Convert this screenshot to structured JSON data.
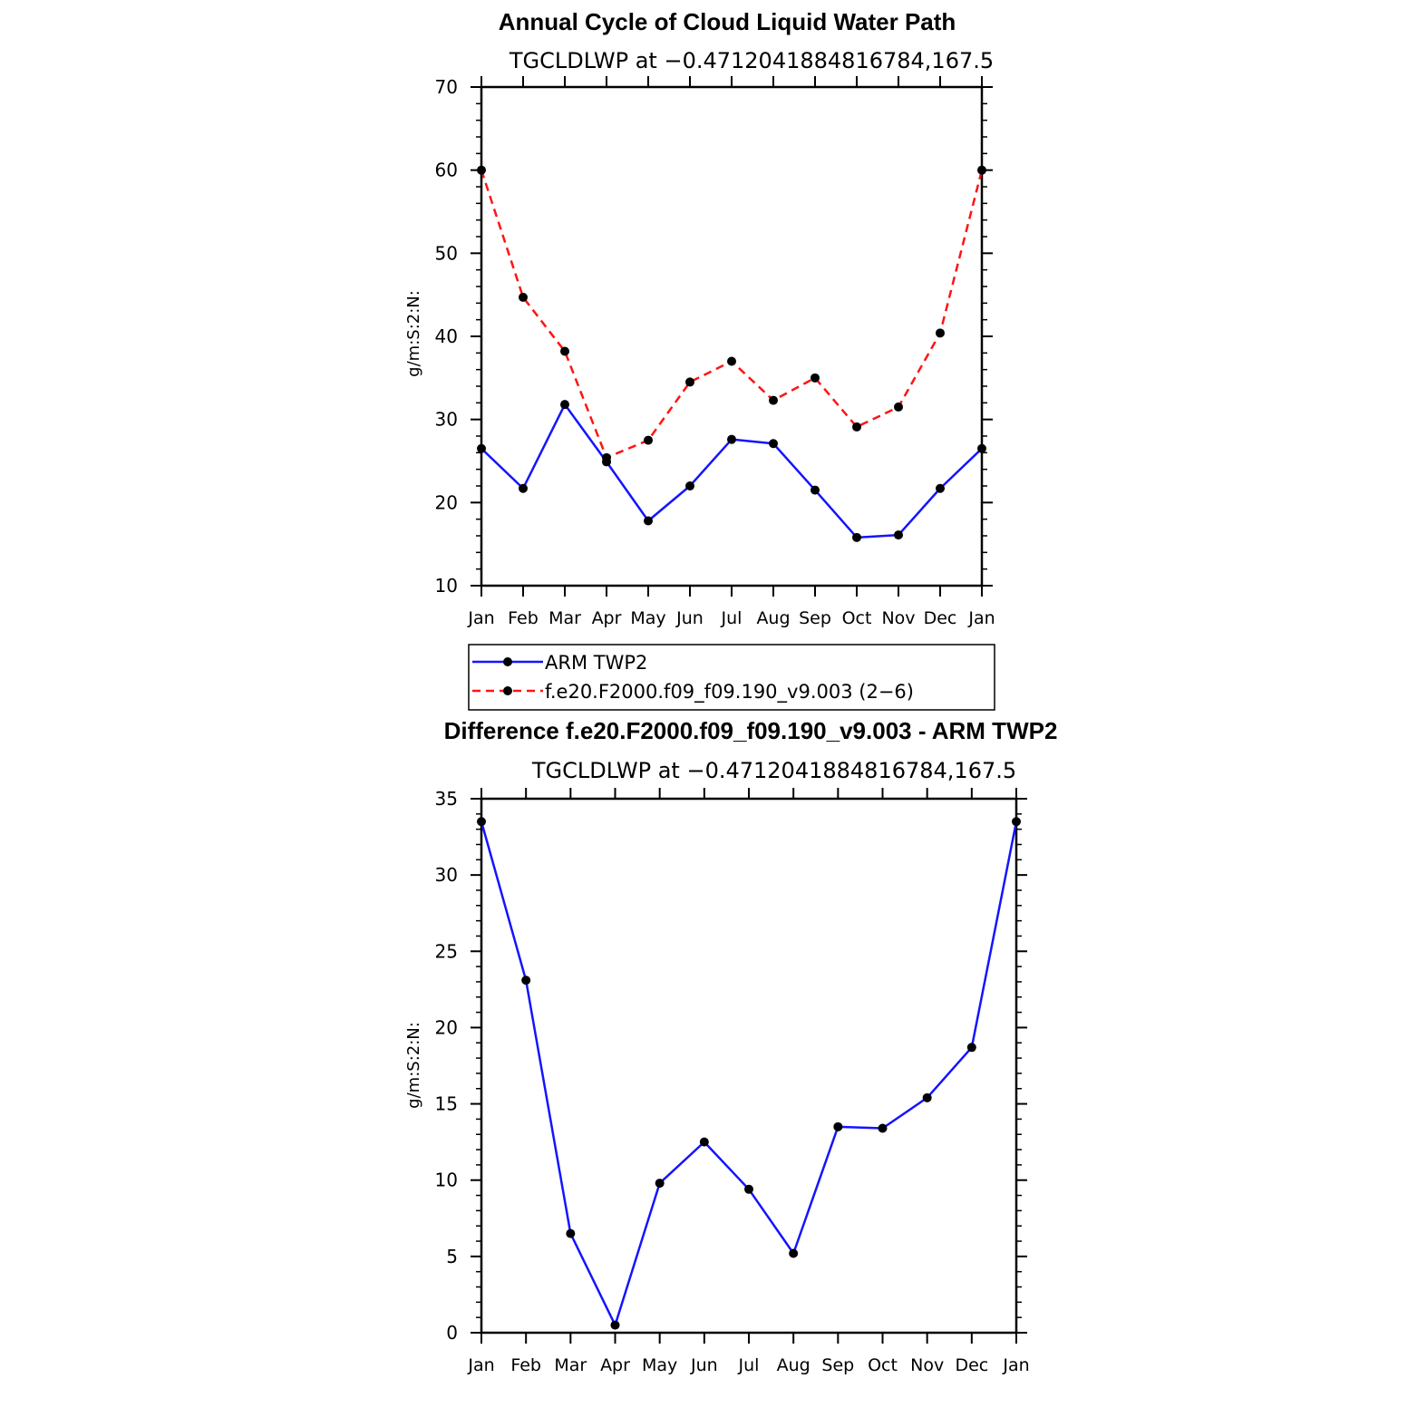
{
  "chart_data": [
    {
      "type": "line",
      "title": "Annual Cycle of Cloud Liquid Water Path",
      "subtitle": "TGCLDLWP at −0.4712041884816784,167.5",
      "xlabel": "",
      "ylabel": "g/m:S:2:N:",
      "categories": [
        "Jan",
        "Feb",
        "Mar",
        "Apr",
        "May",
        "Jun",
        "Jul",
        "Aug",
        "Sep",
        "Oct",
        "Nov",
        "Dec",
        "Jan"
      ],
      "ylim": [
        10,
        70
      ],
      "yticks": [
        10,
        20,
        30,
        40,
        50,
        60,
        70
      ],
      "grid": false,
      "legend_position": "below",
      "series": [
        {
          "name": "ARM TWP2",
          "color": "#1414ff",
          "dash": "solid",
          "values": [
            26.5,
            21.7,
            31.8,
            24.9,
            17.8,
            22.0,
            27.6,
            27.1,
            21.5,
            15.8,
            16.1,
            21.7,
            26.5
          ]
        },
        {
          "name": "f.e20.F2000.f09_f09.190_v9.003 (2−6)",
          "color": "#ff1414",
          "dash": "dashed",
          "values": [
            60.0,
            44.7,
            38.2,
            25.4,
            27.5,
            34.5,
            37.0,
            32.3,
            35.0,
            29.1,
            31.5,
            40.4,
            60.0
          ]
        }
      ]
    },
    {
      "type": "line",
      "title": "Difference f.e20.F2000.f09_f09.190_v9.003 - ARM TWP2",
      "subtitle": "TGCLDLWP at −0.4712041884816784,167.5",
      "xlabel": "",
      "ylabel": "g/m:S:2:N:",
      "categories": [
        "Jan",
        "Feb",
        "Mar",
        "Apr",
        "May",
        "Jun",
        "Jul",
        "Aug",
        "Sep",
        "Oct",
        "Nov",
        "Dec",
        "Jan"
      ],
      "ylim": [
        0,
        35
      ],
      "yticks": [
        0,
        5,
        10,
        15,
        20,
        25,
        30,
        35
      ],
      "grid": false,
      "series": [
        {
          "name": "Difference",
          "color": "#1414ff",
          "dash": "solid",
          "values": [
            33.5,
            23.1,
            6.5,
            0.5,
            9.8,
            12.5,
            9.4,
            5.2,
            13.5,
            13.4,
            15.4,
            18.7,
            33.5
          ]
        }
      ]
    }
  ]
}
